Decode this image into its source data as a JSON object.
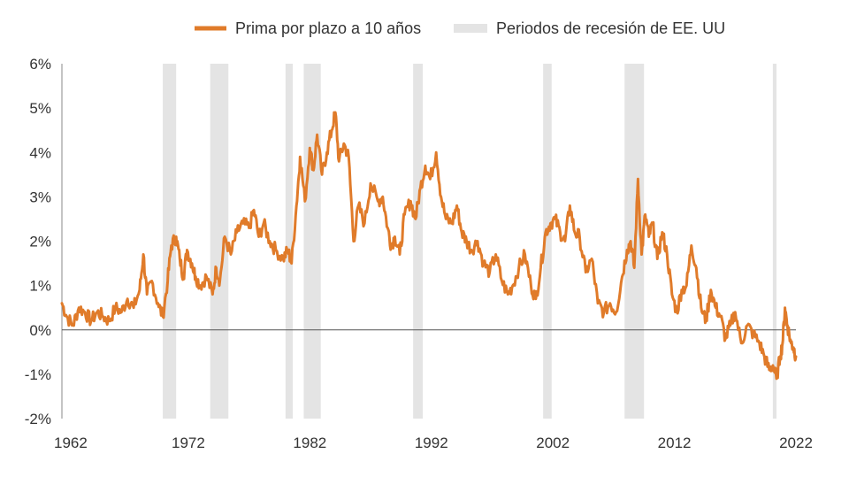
{
  "chart_data": {
    "type": "line",
    "title": "",
    "xlabel": "",
    "ylabel": "",
    "xlim": [
      1961.6,
      2022.0
    ],
    "ylim": [
      -2,
      6
    ],
    "x_ticks": [
      1962,
      1972,
      1982,
      1992,
      2002,
      2012,
      2022
    ],
    "x_tick_labels": [
      "1962",
      "1972",
      "1982",
      "1992",
      "2002",
      "2012",
      "2022"
    ],
    "y_ticks": [
      -2,
      -1,
      0,
      1,
      2,
      3,
      4,
      5,
      6
    ],
    "y_tick_labels": [
      "-2%",
      "-1%",
      "0%",
      "1%",
      "2%",
      "3%",
      "4%",
      "5%",
      "6%"
    ],
    "grid": false,
    "zero_line": true,
    "legend_position": "top-center",
    "legend": {
      "line_label": "Prima por plazo a 10 años",
      "band_label": "Periodos de recesión de EE. UU"
    },
    "colors": {
      "line": "#E07B2A",
      "recession": "#E4E4E4",
      "axis": "#888888",
      "zero_line": "#555555",
      "text": "#333333"
    },
    "recessions": [
      [
        1969.9,
        1971.0
      ],
      [
        1973.8,
        1975.3
      ],
      [
        1980.0,
        1980.6
      ],
      [
        1981.5,
        1982.9
      ],
      [
        1990.5,
        1991.3
      ],
      [
        2001.2,
        2001.9
      ],
      [
        2007.9,
        2009.5
      ],
      [
        2020.1,
        2020.4
      ]
    ],
    "series": [
      {
        "name": "Prima por plazo a 10 años",
        "x": [
          1961.6,
          1962.0,
          1962.5,
          1963.0,
          1963.5,
          1964.0,
          1964.5,
          1965.0,
          1965.5,
          1966.0,
          1966.5,
          1967.0,
          1967.5,
          1968.0,
          1968.3,
          1968.6,
          1969.0,
          1969.5,
          1969.9,
          1970.3,
          1970.6,
          1971.0,
          1971.3,
          1971.6,
          1971.9,
          1972.3,
          1972.6,
          1973.0,
          1973.5,
          1974.0,
          1974.3,
          1974.6,
          1975.0,
          1975.5,
          1976.0,
          1976.5,
          1977.0,
          1977.4,
          1977.8,
          1978.2,
          1978.7,
          1979.2,
          1979.8,
          1980.2,
          1980.5,
          1980.9,
          1981.2,
          1981.6,
          1982.0,
          1982.3,
          1982.6,
          1983.0,
          1983.4,
          1983.8,
          1984.1,
          1984.4,
          1984.8,
          1985.2,
          1985.6,
          1986.0,
          1986.5,
          1987.0,
          1987.6,
          1988.0,
          1988.4,
          1988.7,
          1989.0,
          1989.4,
          1989.8,
          1990.3,
          1990.7,
          1991.1,
          1991.5,
          1991.9,
          1992.4,
          1992.8,
          1993.2,
          1993.7,
          1994.1,
          1994.5,
          1994.9,
          1995.3,
          1995.8,
          1996.3,
          1996.8,
          1997.3,
          1997.8,
          1998.3,
          1998.7,
          1999.2,
          1999.7,
          2000.2,
          2000.6,
          2001.0,
          2001.4,
          2001.8,
          2002.2,
          2002.6,
          2003.0,
          2003.4,
          2003.8,
          2004.2,
          2004.7,
          2005.2,
          2005.7,
          2006.2,
          2006.7,
          2007.2,
          2007.7,
          2008.1,
          2008.4,
          2008.7,
          2009.0,
          2009.3,
          2009.6,
          2009.9,
          2010.2,
          2010.6,
          2011.0,
          2011.4,
          2011.8,
          2012.2,
          2012.6,
          2013.0,
          2013.4,
          2013.8,
          2014.2,
          2014.6,
          2015.0,
          2015.4,
          2015.8,
          2016.2,
          2016.6,
          2017.0,
          2017.5,
          2018.0,
          2018.5,
          2019.0,
          2019.4,
          2019.8,
          2020.1,
          2020.4,
          2020.7,
          2020.9,
          2021.1,
          2021.3,
          2021.6,
          2021.8,
          2022.0
        ],
        "values": [
          0.6,
          0.3,
          0.1,
          0.5,
          0.4,
          0.2,
          0.4,
          0.3,
          0.2,
          0.5,
          0.4,
          0.7,
          0.5,
          0.9,
          1.7,
          0.8,
          1.1,
          0.6,
          0.3,
          1.1,
          1.9,
          2.1,
          1.6,
          1.2,
          1.8,
          1.5,
          1.2,
          1.0,
          1.2,
          0.8,
          1.4,
          1.1,
          2.1,
          1.7,
          2.2,
          2.4,
          2.3,
          2.7,
          2.1,
          2.4,
          2.0,
          1.8,
          1.6,
          1.8,
          1.5,
          2.8,
          3.9,
          2.9,
          4.1,
          3.6,
          4.4,
          3.5,
          4.0,
          4.5,
          4.9,
          3.8,
          4.2,
          3.9,
          2.0,
          2.8,
          2.4,
          3.3,
          2.9,
          3.0,
          2.3,
          1.9,
          2.1,
          1.7,
          2.6,
          2.9,
          2.5,
          3.2,
          3.7,
          3.4,
          4.0,
          3.0,
          2.5,
          2.4,
          2.8,
          2.2,
          2.0,
          1.8,
          2.0,
          1.5,
          1.3,
          1.7,
          1.1,
          0.8,
          1.0,
          1.4,
          1.7,
          1.0,
          0.7,
          1.4,
          2.2,
          2.4,
          2.5,
          2.2,
          2.0,
          2.8,
          2.2,
          2.1,
          1.3,
          1.6,
          0.6,
          0.4,
          0.6,
          0.4,
          1.2,
          1.8,
          2.0,
          1.4,
          3.4,
          1.7,
          2.6,
          2.1,
          2.4,
          1.6,
          2.2,
          1.7,
          0.8,
          0.4,
          0.9,
          1.0,
          1.9,
          1.4,
          0.5,
          0.2,
          0.9,
          0.5,
          0.3,
          -0.2,
          0.1,
          0.4,
          -0.3,
          0.1,
          -0.1,
          -0.3,
          -0.6,
          -0.9,
          -0.8,
          -1.1,
          -0.6,
          -0.3,
          0.5,
          0.1,
          -0.3,
          -0.4,
          -0.6
        ]
      }
    ]
  }
}
